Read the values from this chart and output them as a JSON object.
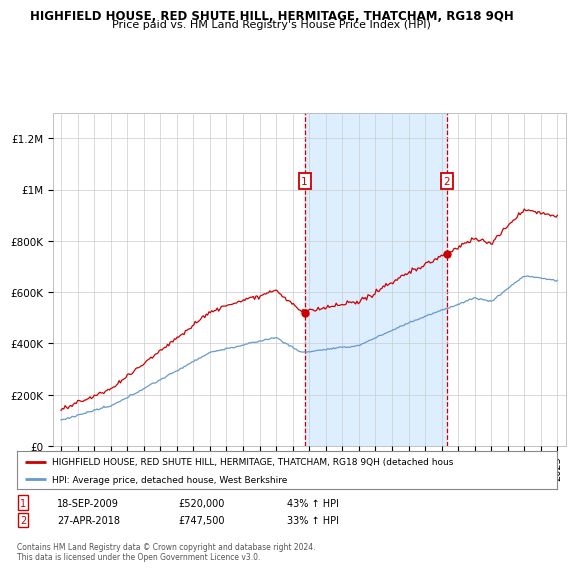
{
  "title": "HIGHFIELD HOUSE, RED SHUTE HILL, HERMITAGE, THATCHAM, RG18 9QH",
  "subtitle": "Price paid vs. HM Land Registry's House Price Index (HPI)",
  "legend_line1": "HIGHFIELD HOUSE, RED SHUTE HILL, HERMITAGE, THATCHAM, RG18 9QH (detached hous",
  "legend_line2": "HPI: Average price, detached house, West Berkshire",
  "footnote": "Contains HM Land Registry data © Crown copyright and database right 2024.\nThis data is licensed under the Open Government Licence v3.0.",
  "transaction1_date": "18-SEP-2009",
  "transaction1_price": "£520,000",
  "transaction1_pct": "43% ↑ HPI",
  "transaction2_date": "27-APR-2018",
  "transaction2_price": "£747,500",
  "transaction2_pct": "33% ↑ HPI",
  "red_color": "#cc0000",
  "blue_color": "#6699cc",
  "shaded_color": "#ddeeff",
  "ylim_min": 0,
  "ylim_max": 1300000,
  "yticks": [
    0,
    200000,
    400000,
    600000,
    800000,
    1000000,
    1200000
  ],
  "ytick_labels": [
    "£0",
    "£200K",
    "£400K",
    "£600K",
    "£800K",
    "£1M",
    "£1.2M"
  ],
  "vline1_x": 2009.72,
  "vline2_x": 2018.32,
  "point1_x": 2009.72,
  "point1_y": 520000,
  "point2_x": 2018.32,
  "point2_y": 747500,
  "xmin": 1994.5,
  "xmax": 2025.5
}
